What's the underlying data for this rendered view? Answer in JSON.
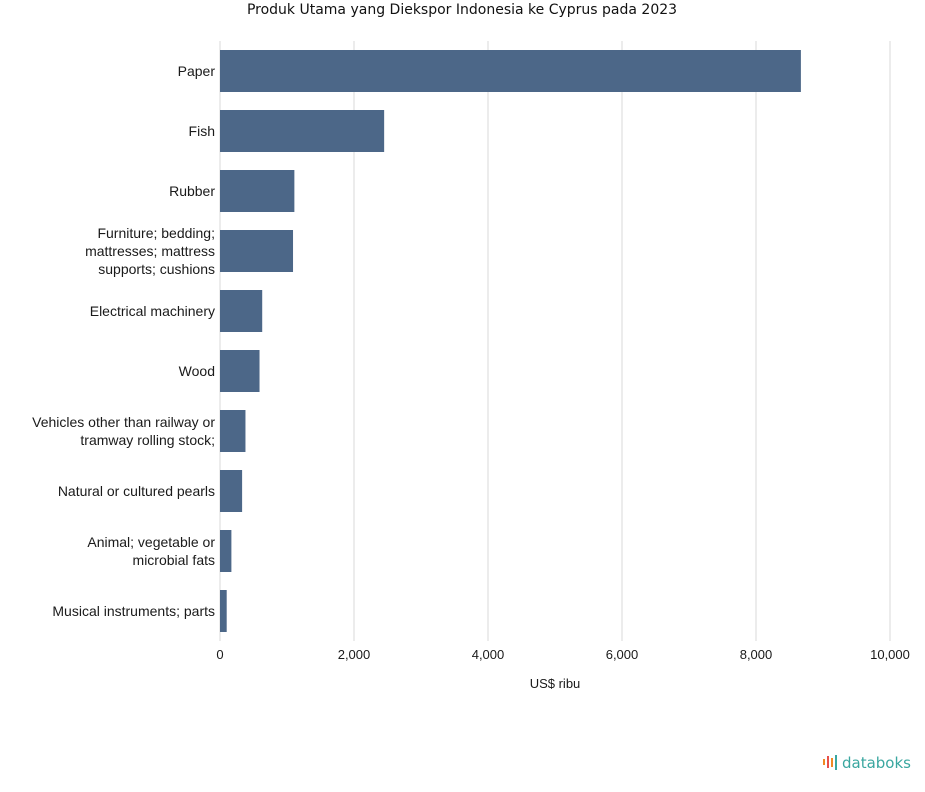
{
  "chart_data": {
    "type": "bar",
    "orientation": "horizontal",
    "title": "Produk Utama yang Diekspor Indonesia ke Cyprus pada 2023",
    "xlabel": "US$ ribu",
    "ylabel": "",
    "xlim": [
      0,
      10000
    ],
    "ticks": [
      "0",
      "2,000",
      "4,000",
      "6,000",
      "8,000",
      "10,000"
    ],
    "tick_values": [
      0,
      2000,
      4000,
      6000,
      8000,
      10000
    ],
    "grid": true,
    "bar_color": "#4c6788",
    "categories": [
      [
        "Paper"
      ],
      [
        "Fish"
      ],
      [
        "Rubber"
      ],
      [
        "Furniture; bedding;",
        "mattresses; mattress",
        "supports; cushions"
      ],
      [
        "Electrical machinery"
      ],
      [
        "Wood"
      ],
      [
        "Vehicles other than railway or",
        "tramway rolling stock;"
      ],
      [
        "Natural or cultured pearls"
      ],
      [
        "Animal; vegetable or",
        "microbial fats"
      ],
      [
        "Musical instruments; parts"
      ]
    ],
    "values": [
      8670,
      2450,
      1110,
      1090,
      630,
      590,
      380,
      330,
      170,
      100
    ]
  },
  "brand": {
    "name": "databoks",
    "text_color": "#3aa7a0",
    "mark_colors": [
      "#f08a24",
      "#e8504a",
      "#3aa7a0"
    ]
  }
}
